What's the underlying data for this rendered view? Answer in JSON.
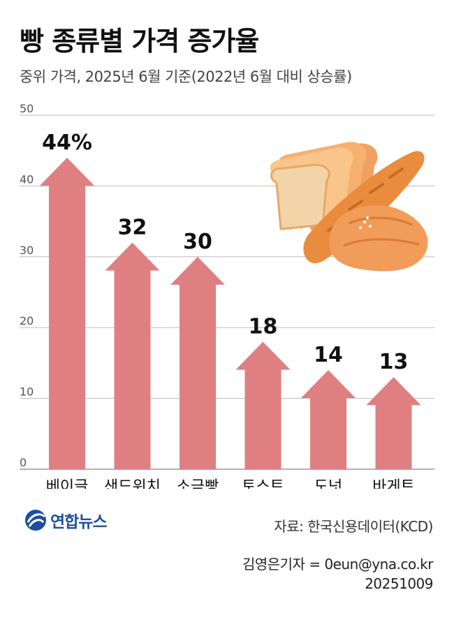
{
  "title": "빵 종류별 가격 증가율",
  "subtitle": "중위 가격, 2025년 6월 기준(2022년 6월 대비 상승률)",
  "chart_data": {
    "type": "bar",
    "categories": [
      "베이글",
      "샌드위치",
      "소금빵",
      "토스트",
      "도넛",
      "바게트"
    ],
    "values": [
      44,
      32,
      30,
      18,
      14,
      13
    ],
    "value_labels": [
      "44%",
      "32",
      "30",
      "18",
      "14",
      "13"
    ],
    "ylim": [
      0,
      50
    ],
    "yticks": [
      "0",
      "10",
      "20",
      "30",
      "40",
      "50"
    ],
    "grid": true,
    "bar_color": "#e07f82"
  },
  "logo": {
    "text": "연합뉴스",
    "color": "#1d4f9e"
  },
  "source": "자료: 한국신용데이터(KCD)",
  "credit": {
    "reporter": "김영은기자 = 0eun@yna.co.kr",
    "date": "20251009"
  },
  "illustration": {
    "icon": "bread-illustration-icon"
  }
}
